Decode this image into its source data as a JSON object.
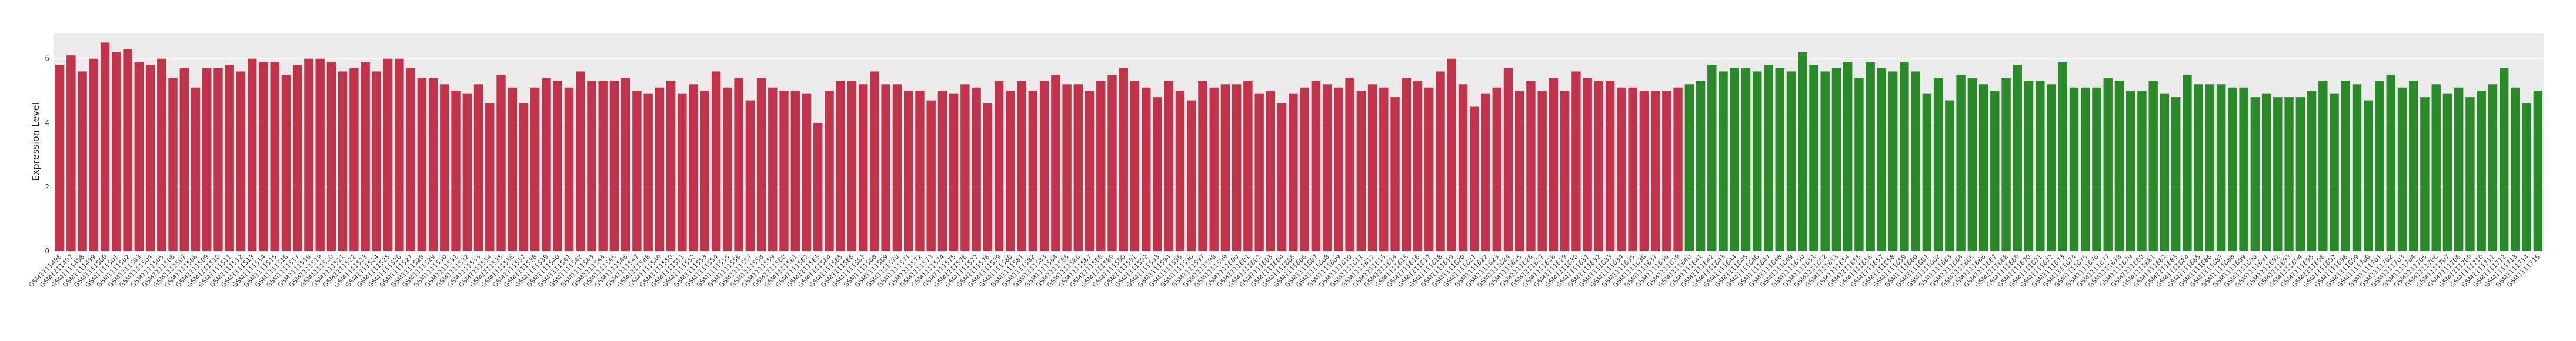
{
  "chart_data": {
    "type": "bar",
    "y_label": "Expression Level",
    "ylim": [
      0,
      6.8
    ],
    "yticks": [
      0,
      2,
      4,
      6
    ],
    "grid": true,
    "series": [
      {
        "color": "#c0334a",
        "categories": [
          "GSM1111496",
          "GSM1111497",
          "GSM1111498",
          "GSM1111499",
          "GSM1111500",
          "GSM1111501",
          "GSM1111502",
          "GSM1111503",
          "GSM1111504",
          "GSM1111505",
          "GSM1111506",
          "GSM1111507",
          "GSM1111508",
          "GSM1111509",
          "GSM1111510",
          "GSM1111511",
          "GSM1111512",
          "GSM1111513",
          "GSM1111514",
          "GSM1111515",
          "GSM1111516",
          "GSM1111517",
          "GSM1111518",
          "GSM1111519",
          "GSM1111520",
          "GSM1111521",
          "GSM1111522",
          "GSM1111523",
          "GSM1111524",
          "GSM1111525",
          "GSM1111526",
          "GSM1111527",
          "GSM1111528",
          "GSM1111529",
          "GSM1111530",
          "GSM1111531",
          "GSM1111532",
          "GSM1111533",
          "GSM1111534",
          "GSM1111535",
          "GSM1111536",
          "GSM1111537",
          "GSM1111538",
          "GSM1111539",
          "GSM1111540",
          "GSM1111541",
          "GSM1111542",
          "GSM1111543",
          "GSM1111544",
          "GSM1111545",
          "GSM1111546",
          "GSM1111547",
          "GSM1111548",
          "GSM1111549",
          "GSM1111550",
          "GSM1111551",
          "GSM1111552",
          "GSM1111553",
          "GSM1111554",
          "GSM1111555",
          "GSM1111556",
          "GSM1111557",
          "GSM1111558",
          "GSM1111559",
          "GSM1111560",
          "GSM1111561",
          "GSM1111562",
          "GSM1111563",
          "GSM1111564",
          "GSM1111565",
          "GSM1111566",
          "GSM1111567",
          "GSM1111568",
          "GSM1111569",
          "GSM1111570",
          "GSM1111571",
          "GSM1111572",
          "GSM1111573",
          "GSM1111574",
          "GSM1111575",
          "GSM1111576",
          "GSM1111577",
          "GSM1111578",
          "GSM1111579",
          "GSM1111580",
          "GSM1111581",
          "GSM1111582",
          "GSM1111583",
          "GSM1111584",
          "GSM1111585",
          "GSM1111586",
          "GSM1111587",
          "GSM1111588",
          "GSM1111589",
          "GSM1111590",
          "GSM1111591",
          "GSM1111592",
          "GSM1111593",
          "GSM1111594",
          "GSM1111595",
          "GSM1111596",
          "GSM1111597",
          "GSM1111598",
          "GSM1111599",
          "GSM1111600",
          "GSM1111601",
          "GSM1111602",
          "GSM1111603",
          "GSM1111604",
          "GSM1111605",
          "GSM1111606",
          "GSM1111607",
          "GSM1111608",
          "GSM1111609",
          "GSM1111610",
          "GSM1111611",
          "GSM1111612",
          "GSM1111613",
          "GSM1111614",
          "GSM1111615",
          "GSM1111616",
          "GSM1111617",
          "GSM1111618",
          "GSM1111619",
          "GSM1111620",
          "GSM1111621",
          "GSM1111622",
          "GSM1111623",
          "GSM1111624",
          "GSM1111625",
          "GSM1111626",
          "GSM1111627",
          "GSM1111628",
          "GSM1111629",
          "GSM1111630",
          "GSM1111631",
          "GSM1111632",
          "GSM1111633",
          "GSM1111634",
          "GSM1111635",
          "GSM1111636",
          "GSM1111637",
          "GSM1111638",
          "GSM1111639"
        ],
        "values": [
          5.8,
          6.1,
          5.6,
          6.0,
          6.5,
          6.2,
          6.3,
          5.9,
          5.8,
          6.0,
          5.4,
          5.7,
          5.1,
          5.7,
          5.7,
          5.8,
          5.6,
          6.0,
          5.9,
          5.9,
          5.5,
          5.8,
          6.0,
          6.0,
          5.9,
          5.6,
          5.7,
          5.9,
          5.6,
          6.0,
          6.0,
          5.7,
          5.4,
          5.4,
          5.2,
          5.0,
          4.9,
          5.2,
          4.6,
          5.5,
          5.1,
          4.6,
          5.1,
          5.4,
          5.3,
          5.1,
          5.6,
          5.3,
          5.3,
          5.3,
          5.4,
          5.0,
          4.9,
          5.1,
          5.3,
          4.9,
          5.2,
          5.0,
          5.6,
          5.1,
          5.4,
          4.7,
          5.4,
          5.1,
          5.0,
          5.0,
          4.9,
          4.0,
          5.0,
          5.3,
          5.3,
          5.2,
          5.6,
          5.2,
          5.2,
          5.0,
          5.0,
          4.7,
          5.0,
          4.9,
          5.2,
          5.1,
          4.6,
          5.3,
          5.0,
          5.3,
          5.0,
          5.3,
          5.5,
          5.2,
          5.2,
          5.0,
          5.3,
          5.5,
          5.7,
          5.3,
          5.1,
          4.8,
          5.3,
          5.0,
          4.7,
          5.3,
          5.1,
          5.2,
          5.2,
          5.3,
          4.9,
          5.0,
          4.6,
          4.9,
          5.1,
          5.3,
          5.2,
          5.1,
          5.4,
          5.0,
          5.2,
          5.1,
          4.8,
          5.4,
          5.3,
          5.1,
          5.6,
          6.0,
          5.2,
          4.5,
          4.9,
          5.1,
          5.7,
          5.0,
          5.3,
          5.0,
          5.4,
          5.0,
          5.6,
          5.4,
          5.3,
          5.3,
          5.1,
          5.1,
          5.0,
          5.0,
          5.0,
          5.1
        ]
      },
      {
        "color": "#2a8a2a",
        "categories": [
          "GSM1111640",
          "GSM1111641",
          "GSM1111642",
          "GSM1111643",
          "GSM1111644",
          "GSM1111645",
          "GSM1111646",
          "GSM1111647",
          "GSM1111648",
          "GSM1111649",
          "GSM1111650",
          "GSM1111651",
          "GSM1111652",
          "GSM1111653",
          "GSM1111654",
          "GSM1111655",
          "GSM1111656",
          "GSM1111657",
          "GSM1111658",
          "GSM1111659",
          "GSM1111660",
          "GSM1111661",
          "GSM1111662",
          "GSM1111663",
          "GSM1111664",
          "GSM1111665",
          "GSM1111666",
          "GSM1111667",
          "GSM1111668",
          "GSM1111669",
          "GSM1111670",
          "GSM1111671",
          "GSM1111672",
          "GSM1111673",
          "GSM1111674",
          "GSM1111675",
          "GSM1111676",
          "GSM1111677",
          "GSM1111678",
          "GSM1111679",
          "GSM1111680",
          "GSM1111681",
          "GSM1111682",
          "GSM1111683",
          "GSM1111684",
          "GSM1111685",
          "GSM1111686",
          "GSM1111687",
          "GSM1111688",
          "GSM1111689",
          "GSM1111690",
          "GSM1111691",
          "GSM1111692",
          "GSM1111693",
          "GSM1111694",
          "GSM1111695",
          "GSM1111696",
          "GSM1111697",
          "GSM1111698",
          "GSM1111699",
          "GSM1111700",
          "GSM1111701",
          "GSM1111702",
          "GSM1111703",
          "GSM1111704",
          "GSM1111705",
          "GSM1111706",
          "GSM1111707",
          "GSM1111708",
          "GSM1111709",
          "GSM1111710",
          "GSM1111711",
          "GSM1111712",
          "GSM1111713",
          "GSM1111714",
          "GSM1111715"
        ],
        "values": [
          5.2,
          5.3,
          5.8,
          5.6,
          5.7,
          5.7,
          5.6,
          5.8,
          5.7,
          5.6,
          6.2,
          5.8,
          5.6,
          5.7,
          5.9,
          5.4,
          5.9,
          5.7,
          5.6,
          5.9,
          5.6,
          4.9,
          5.4,
          4.7,
          5.5,
          5.4,
          5.2,
          5.0,
          5.4,
          5.8,
          5.3,
          5.3,
          5.2,
          5.9,
          5.1,
          5.1,
          5.1,
          5.4,
          5.3,
          5.0,
          5.0,
          5.3,
          4.9,
          4.8,
          5.5,
          5.2,
          5.2,
          5.2,
          5.1,
          5.1,
          4.8,
          4.9,
          4.8,
          4.8,
          4.8,
          5.0,
          5.3,
          4.9,
          5.3,
          5.2,
          4.7,
          5.3,
          5.5,
          5.1,
          5.3,
          4.8,
          5.2,
          4.9,
          5.1,
          4.8,
          5.0,
          5.2,
          5.7,
          5.1,
          4.6,
          5.0
        ]
      }
    ]
  }
}
